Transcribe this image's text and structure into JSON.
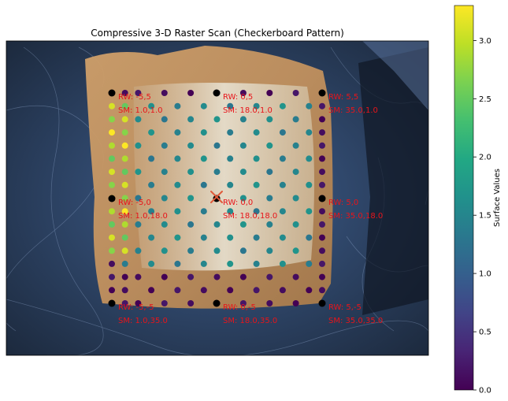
{
  "chart_data": {
    "type": "scatter",
    "title": "Compressive 3-D Raster Scan (Checkerboard Pattern)",
    "xlabel": "",
    "ylabel": "",
    "grid": false,
    "background": "microscope image of a tan rectangular sample on a dark blue textured substrate",
    "colorbar": {
      "label": "Surface Values",
      "colormap": "viridis",
      "range": [
        0,
        3.3
      ],
      "ticks": [
        0.0,
        0.5,
        1.0,
        1.5,
        2.0,
        2.5,
        3.0
      ],
      "tick_labels": [
        "0.0",
        "0.5",
        "1.0",
        "1.5",
        "2.0",
        "2.5",
        "3.0"
      ]
    },
    "grid_points": {
      "columns": 17,
      "rows": 17,
      "points_shown_in_checkerboard": "about half of the grid positions per row",
      "left_columns_value_range": [
        2.5,
        3.3
      ],
      "center_value_range": [
        1.3,
        1.7
      ],
      "border_value_range": [
        0.0,
        0.2
      ]
    },
    "reference_markers": [
      {
        "rw": "RW: -5,5",
        "sm": "SM: 1.0,1.0"
      },
      {
        "rw": "RW: 0,5",
        "sm": "SM: 18.0,1.0"
      },
      {
        "rw": "RW: 5,5",
        "sm": "SM: 35.0,1.0"
      },
      {
        "rw": "RW: -5,0",
        "sm": "SM: 1.0,18.0"
      },
      {
        "rw": "RW: 0,0",
        "sm": "SM: 18.0,18.0"
      },
      {
        "rw": "RW: 5,0",
        "sm": "SM: 35.0,18.0"
      },
      {
        "rw": "RW: -5,-5",
        "sm": "SM: 1.0,35.0"
      },
      {
        "rw": "RW: 0,-5",
        "sm": "SM: 18.0,35.0"
      },
      {
        "rw": "RW: 5,-5",
        "sm": "SM: 35.0,35.0"
      }
    ],
    "center_marker": "red x",
    "colors": {
      "label_text": "#e8141a",
      "marker": "#000000",
      "center_x": "#e05a3a"
    }
  }
}
